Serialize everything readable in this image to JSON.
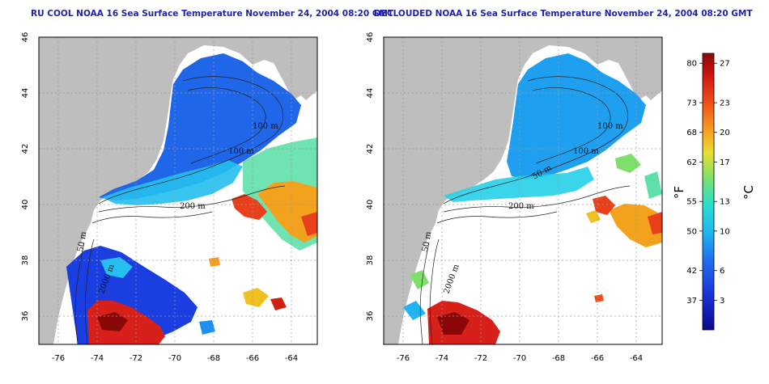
{
  "colors": {
    "land": "#bebebe",
    "ocean_missing": "#ffffff",
    "grid": "#9a9a9a",
    "title": "#2222aa",
    "contour": "#222222"
  },
  "panels": [
    {
      "id": "left",
      "title": "RU COOL NOAA 16 Sea Surface Temperature November 24, 2004 08:20 GMT",
      "contour_labels": [
        "100 m",
        "100 m",
        "200 m",
        "50 m",
        "2000 m"
      ]
    },
    {
      "id": "right",
      "title": "DECLOUDED NOAA 16 Sea Surface Temperature November 24, 2004 08:20 GMT",
      "contour_labels": [
        "100 m",
        "100 m",
        "50 m",
        "200 m",
        "50 m",
        "2000 m"
      ]
    }
  ],
  "map_axes": {
    "lon_ticks": [
      "-76",
      "-74",
      "-72",
      "-70",
      "-68",
      "-66",
      "-64"
    ],
    "lat_ticks": [
      "36",
      "38",
      "40",
      "42",
      "44",
      "46"
    ],
    "lon_range": [
      -77.2,
      -62.8
    ],
    "lat_range": [
      35.0,
      46.0
    ]
  },
  "colorbar": {
    "fahrenheit_label": "°F",
    "celsius_label": "°C",
    "fahrenheit_ticks": [
      "80",
      "73",
      "68",
      "62",
      "55",
      "50",
      "42",
      "37"
    ],
    "celsius_ticks": [
      "27",
      "23",
      "20",
      "17",
      "13",
      "10",
      "6",
      "3"
    ],
    "celsius_values": [
      27,
      23,
      20,
      17,
      13,
      10,
      6,
      3
    ],
    "range_c": [
      0,
      28
    ]
  }
}
